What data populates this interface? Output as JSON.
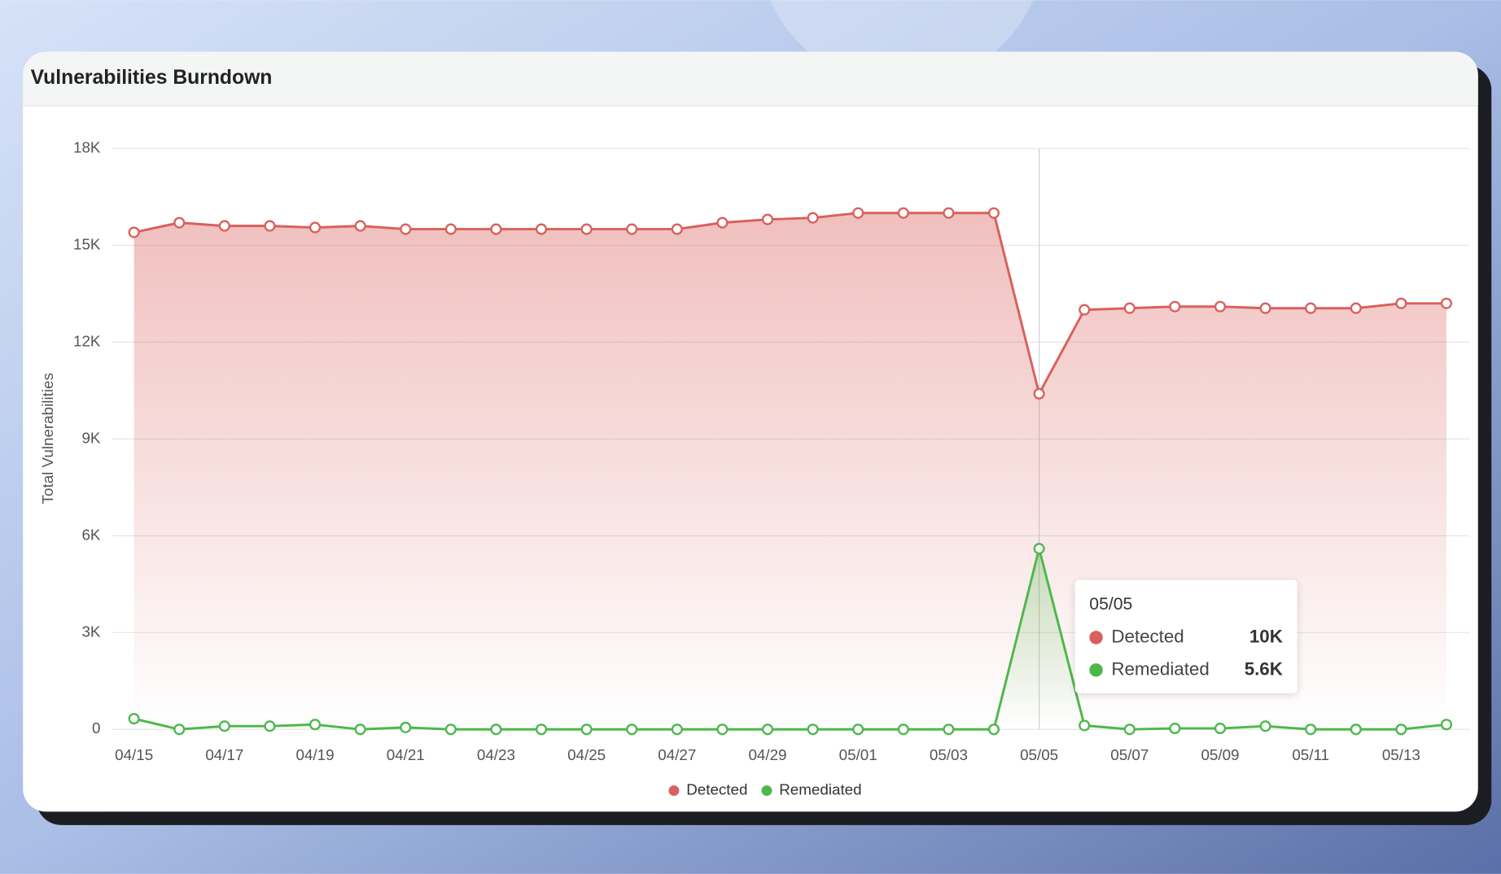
{
  "header": {
    "title": "Vulnerabilities Burndown"
  },
  "chart_data": {
    "type": "line",
    "area": true,
    "y_label": "Total Vulnerabilities",
    "categories": [
      "04/15",
      null,
      "04/17",
      null,
      "04/19",
      null,
      "04/21",
      null,
      "04/23",
      null,
      "04/25",
      null,
      "04/27",
      null,
      "04/29",
      null,
      "05/01",
      null,
      "05/03",
      null,
      "05/05",
      null,
      "05/07",
      null,
      "05/09",
      null,
      "05/11",
      null,
      "05/13",
      null
    ],
    "series": [
      {
        "name": "Detected",
        "color": "#d9605c",
        "values": [
          15400,
          15700,
          15600,
          15600,
          15550,
          15600,
          15500,
          15500,
          15500,
          15500,
          15500,
          15500,
          15500,
          15700,
          15800,
          15850,
          16000,
          16000,
          16000,
          16000,
          10400,
          13000,
          13050,
          13100,
          13100,
          13050,
          13050,
          13050,
          13200,
          13200
        ]
      },
      {
        "name": "Remediated",
        "color": "#4cb84a",
        "values": [
          330,
          0,
          100,
          100,
          150,
          0,
          60,
          0,
          0,
          0,
          0,
          0,
          0,
          0,
          0,
          0,
          0,
          0,
          0,
          0,
          5600,
          120,
          0,
          30,
          30,
          100,
          0,
          0,
          0,
          150
        ]
      }
    ],
    "ylim": [
      0,
      18000
    ],
    "yticks": [
      0,
      {
        "value": 3000,
        "label": "3K"
      },
      {
        "value": 6000,
        "label": "6K"
      },
      {
        "value": 9000,
        "label": "9K"
      },
      {
        "value": 12000,
        "label": "12K"
      },
      {
        "value": 15000,
        "label": "15K"
      },
      {
        "value": 18000,
        "label": "18K"
      }
    ],
    "grid": true,
    "legend": "bottom",
    "tooltip": {
      "title": "05/05",
      "value_labels": [
        "10K",
        "5.6K"
      ]
    }
  }
}
